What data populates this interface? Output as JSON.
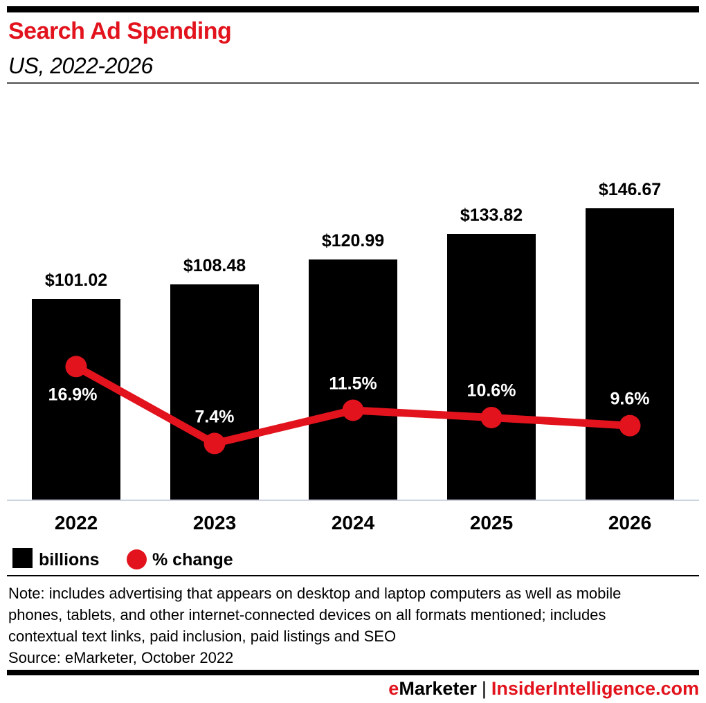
{
  "header": {
    "title": "Search Ad Spending",
    "subtitle": "US, 2022-2026"
  },
  "chart_data": {
    "type": "bar",
    "combo": "bar+line",
    "title": "Search Ad Spending",
    "subtitle": "US, 2022-2026",
    "categories": [
      "2022",
      "2023",
      "2024",
      "2025",
      "2026"
    ],
    "series": [
      {
        "name": "billions",
        "type": "bar",
        "values": [
          101.02,
          108.48,
          120.99,
          133.82,
          146.67
        ],
        "labels": [
          "$101.02",
          "$108.48",
          "$120.99",
          "$133.82",
          "$146.67"
        ],
        "color": "#000000"
      },
      {
        "name": "% change",
        "type": "line",
        "values": [
          16.9,
          7.4,
          11.5,
          10.6,
          9.6
        ],
        "labels": [
          "16.9%",
          "7.4%",
          "11.5%",
          "10.6%",
          "9.6%"
        ],
        "color": "#e2131d"
      }
    ],
    "legend": [
      {
        "label": "billions",
        "swatch": "square",
        "color": "#000000"
      },
      {
        "label": "% change",
        "swatch": "circle",
        "color": "#e2131d"
      }
    ],
    "legend_position": "bottom-left",
    "grid": false,
    "xlabel": "",
    "ylabel": "",
    "units": "billions of US dollars"
  },
  "footnote": {
    "note_lines": [
      "Note: includes advertising that appears on desktop and laptop computers as well as mobile",
      "phones, tablets, and other internet-connected devices on all formats mentioned; includes",
      "contextual text links, paid inclusion, paid listings and SEO"
    ],
    "source": "Source: eMarketer, October 2022"
  },
  "footer": {
    "brand_first_letter": "e",
    "brand_rest": "Marketer",
    "separator": "|",
    "site": "InsiderIntelligence.com"
  },
  "colors": {
    "accent_red": "#e2131d",
    "bar_black": "#000000",
    "baseline_gray": "#ccd3de"
  }
}
